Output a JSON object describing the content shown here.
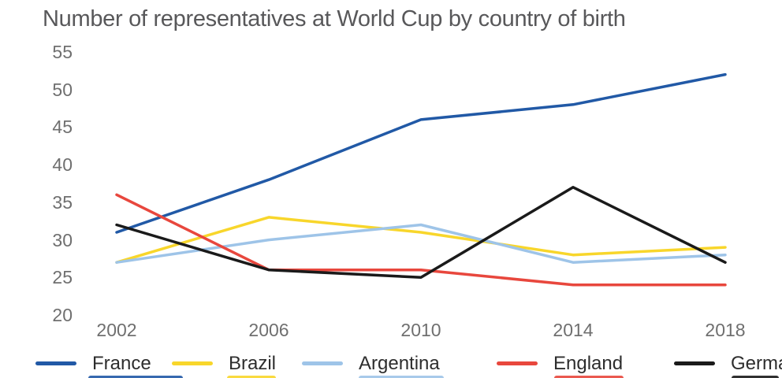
{
  "chart_data": {
    "type": "line",
    "title": "Number of representatives at World Cup by country of birth",
    "x": [
      2002,
      2006,
      2010,
      2014,
      2018
    ],
    "series": [
      {
        "name": "France",
        "color": "#2159a6",
        "values": [
          31,
          38,
          46,
          48,
          52
        ]
      },
      {
        "name": "Brazil",
        "color": "#f8d62b",
        "values": [
          27,
          33,
          31,
          28,
          29
        ]
      },
      {
        "name": "Argentina",
        "color": "#9ec4e8",
        "values": [
          27,
          30,
          32,
          27,
          28
        ]
      },
      {
        "name": "England",
        "color": "#e8473d",
        "values": [
          36,
          26,
          26,
          24,
          24
        ]
      },
      {
        "name": "Germany",
        "color": "#1a1a1a",
        "values": [
          32,
          26,
          25,
          37,
          27
        ]
      }
    ],
    "ylim": [
      20,
      55
    ],
    "yticks": [
      55,
      50,
      45,
      40,
      35,
      30,
      25,
      20
    ],
    "xticks": [
      "2002",
      "2006",
      "2010",
      "2014",
      "2018"
    ],
    "grid": false,
    "axis_lines": false,
    "legend_position": "bottom",
    "text_colors": {
      "title": "#58585a",
      "ticks": "#6f6f6f",
      "legend": "#2d2d2d"
    }
  }
}
